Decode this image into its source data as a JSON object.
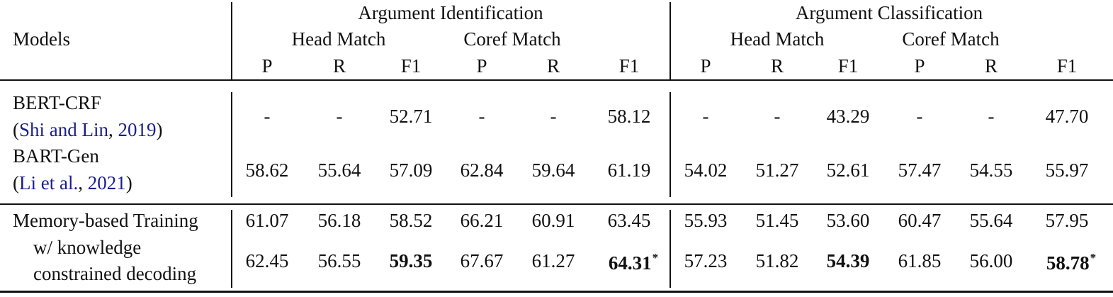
{
  "header": {
    "models": "Models",
    "groups": [
      "Argument Identification",
      "Argument Classification"
    ],
    "subgroups": [
      "Head Match",
      "Coref Match",
      "Head Match",
      "Coref Match"
    ],
    "metrics": [
      "P",
      "R",
      "F1",
      "P",
      "R",
      "F1",
      "P",
      "R",
      "F1",
      "P",
      "R",
      "F1"
    ]
  },
  "rows": [
    {
      "name": "BERT-CRF",
      "cite_open": "(",
      "cite_authors": "Shi and Lin",
      "cite_sep": ", ",
      "cite_year": "2019",
      "cite_close": ")",
      "values": [
        "-",
        "-",
        "52.71",
        "-",
        "-",
        "58.12",
        "-",
        "-",
        "43.29",
        "-",
        "-",
        "47.70"
      ]
    },
    {
      "name": "BART-Gen",
      "cite_open": "(",
      "cite_authors": "Li et al.",
      "cite_sep": ", ",
      "cite_year": "2021",
      "cite_close": ")",
      "values": [
        "58.62",
        "55.64",
        "57.09",
        "62.84",
        "59.64",
        "61.19",
        "54.02",
        "51.27",
        "52.61",
        "57.47",
        "54.55",
        "55.97"
      ]
    },
    {
      "name": "Memory-based Training",
      "values": [
        "61.07",
        "56.18",
        "58.52",
        "66.21",
        "60.91",
        "63.45",
        "55.93",
        "51.45",
        "53.60",
        "60.47",
        "55.64",
        "57.95"
      ]
    },
    {
      "name_line1": "w/ knowledge",
      "name_line2": "constrained decoding",
      "values": [
        "62.45",
        "56.55",
        "59.35",
        "67.67",
        "61.27",
        "64.31",
        "57.23",
        "51.82",
        "54.39",
        "61.85",
        "56.00",
        "58.78"
      ],
      "bold": [
        2,
        5,
        8,
        11
      ],
      "star": [
        5,
        11
      ],
      "star_mark": "*"
    }
  ]
}
